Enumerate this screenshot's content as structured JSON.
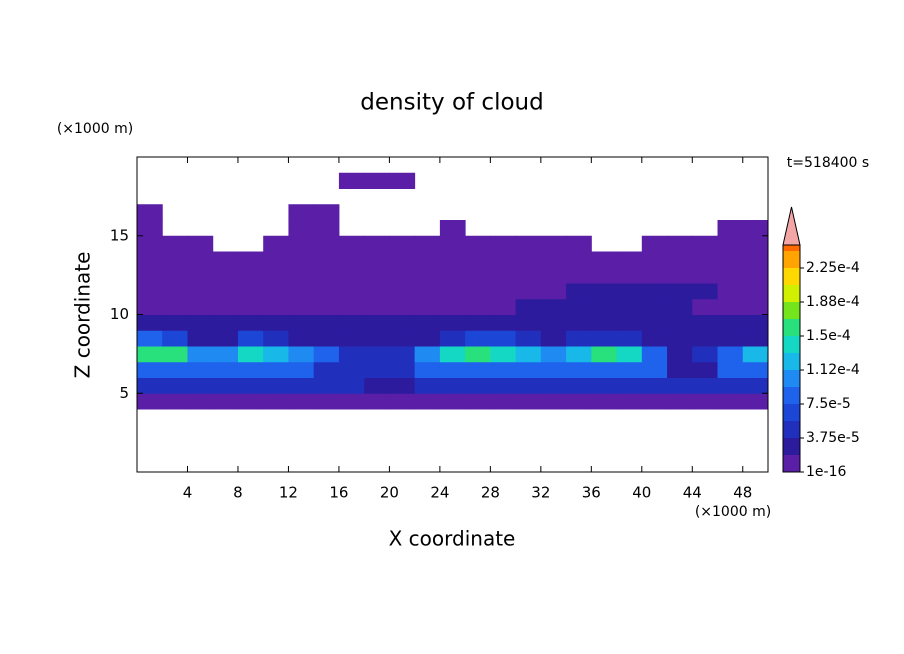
{
  "chart_data": {
    "type": "contour",
    "title": "density of cloud",
    "xlabel": "X coordinate",
    "ylabel": "Z coordinate",
    "x_unit": "(×1000 m)",
    "y_unit": "(×1000 m)",
    "time_label": "t=518400 s",
    "xlim": [
      0,
      50
    ],
    "ylim": [
      0,
      20
    ],
    "xticks": [
      4,
      8,
      12,
      16,
      20,
      24,
      28,
      32,
      36,
      40,
      44,
      48
    ],
    "yticks": [
      5,
      10,
      15
    ],
    "x": [
      1,
      3,
      5,
      7,
      9,
      11,
      13,
      15,
      17,
      19,
      21,
      23,
      25,
      27,
      29,
      31,
      33,
      35,
      37,
      39,
      41,
      43,
      45,
      47,
      49
    ],
    "y": [
      4.5,
      5.5,
      6.5,
      7.5,
      8.5,
      9.5,
      10.5,
      11.5,
      12.5,
      13.5,
      14.5,
      15.5,
      16.5,
      17.5,
      18.5
    ],
    "z": [
      [
        1e-06,
        1e-06,
        1e-06,
        1e-06,
        1e-06,
        1e-06,
        1e-06,
        1e-06,
        1e-06,
        1e-06,
        1e-06,
        1e-06,
        1e-06,
        1e-06,
        1e-06,
        1e-06,
        1e-06,
        1e-06,
        1e-06,
        1e-06,
        1e-06,
        1e-06,
        1e-06,
        1e-06,
        1e-06
      ],
      [
        4e-05,
        4e-05,
        4e-05,
        4e-05,
        4e-05,
        4e-05,
        4e-05,
        4e-05,
        4e-05,
        2e-05,
        2e-05,
        4e-05,
        4e-05,
        4e-05,
        4e-05,
        4e-05,
        4e-05,
        4e-05,
        4e-05,
        4e-05,
        4e-05,
        4e-05,
        4e-05,
        4e-05,
        4e-05
      ],
      [
        8e-05,
        8e-05,
        8e-05,
        8e-05,
        8e-05,
        8e-05,
        8e-05,
        4e-05,
        4e-05,
        4e-05,
        4e-05,
        8e-05,
        8e-05,
        8e-05,
        8e-05,
        8e-05,
        8e-05,
        8e-05,
        8e-05,
        8e-05,
        8e-05,
        3e-05,
        3e-05,
        8e-05,
        8e-05
      ],
      [
        0.00016,
        0.00015,
        0.00011,
        0.0001,
        0.00014,
        0.00013,
        0.0001,
        8e-05,
        5e-05,
        4e-05,
        5e-05,
        0.0001,
        0.00014,
        0.00015,
        0.00014,
        0.00012,
        0.00011,
        0.00013,
        0.00015,
        0.00014,
        8e-05,
        3e-05,
        4e-05,
        8e-05,
        0.00012
      ],
      [
        8e-05,
        6e-05,
        2e-05,
        3e-05,
        6e-05,
        5e-05,
        3e-05,
        2e-05,
        2e-05,
        2e-05,
        2e-05,
        2e-05,
        4e-05,
        6e-05,
        6e-05,
        5e-05,
        3e-05,
        4e-05,
        5e-05,
        4e-05,
        2e-05,
        2e-05,
        2e-05,
        2e-05,
        3e-05
      ],
      [
        2e-05,
        2e-05,
        2e-05,
        2e-05,
        2e-05,
        2e-05,
        2e-05,
        2e-05,
        2e-05,
        2e-05,
        2e-05,
        2e-05,
        2e-05,
        2e-05,
        2e-05,
        2e-05,
        3e-05,
        3e-05,
        3e-05,
        3e-05,
        3e-05,
        3e-05,
        2e-05,
        2e-05,
        2e-05
      ],
      [
        1.5e-05,
        1.5e-05,
        1.5e-05,
        1.5e-05,
        1.5e-05,
        1.5e-05,
        1.5e-05,
        1.5e-05,
        1.5e-05,
        1.5e-05,
        1.5e-05,
        1.5e-05,
        1.5e-05,
        1.5e-05,
        1.5e-05,
        2.5e-05,
        2.5e-05,
        2.5e-05,
        2.5e-05,
        2.5e-05,
        2.5e-05,
        2.5e-05,
        1.5e-05,
        1.5e-05,
        1.5e-05
      ],
      [
        1e-05,
        1e-05,
        1e-05,
        1e-05,
        1e-05,
        1e-05,
        1e-05,
        1e-05,
        1e-05,
        1e-05,
        1e-05,
        1e-05,
        1e-05,
        1e-05,
        1e-05,
        1e-05,
        1e-05,
        2e-05,
        2e-05,
        2e-05,
        2e-05,
        2e-05,
        2e-05,
        1e-05,
        1e-05
      ],
      [
        1e-05,
        1e-05,
        1e-05,
        1e-05,
        1e-05,
        1e-05,
        1e-05,
        1e-05,
        1e-05,
        1e-05,
        1e-05,
        1e-05,
        1e-05,
        1e-05,
        1e-05,
        1e-05,
        1e-05,
        1e-05,
        1e-05,
        1e-05,
        1e-05,
        1e-05,
        1e-05,
        1e-05,
        1e-05
      ],
      [
        5e-06,
        5e-06,
        5e-06,
        5e-06,
        5e-06,
        5e-06,
        5e-06,
        5e-06,
        5e-06,
        5e-06,
        5e-06,
        5e-06,
        5e-06,
        5e-06,
        5e-06,
        5e-06,
        5e-06,
        5e-06,
        5e-06,
        5e-06,
        5e-06,
        5e-06,
        5e-06,
        5e-06,
        5e-06
      ],
      [
        3e-06,
        3e-06,
        3e-06,
        null,
        null,
        3e-06,
        3e-06,
        3e-06,
        3e-06,
        3e-06,
        3e-06,
        3e-06,
        3e-06,
        3e-06,
        3e-06,
        3e-06,
        3e-06,
        3e-06,
        null,
        null,
        3e-06,
        3e-06,
        3e-06,
        3e-06,
        3e-06
      ],
      [
        3e-06,
        null,
        null,
        null,
        null,
        null,
        3e-06,
        3e-06,
        null,
        null,
        null,
        null,
        3e-06,
        null,
        null,
        null,
        null,
        null,
        null,
        null,
        null,
        null,
        null,
        3e-06,
        3e-06
      ],
      [
        3e-06,
        null,
        null,
        null,
        null,
        null,
        3e-06,
        3e-06,
        null,
        null,
        null,
        null,
        null,
        null,
        null,
        null,
        null,
        null,
        null,
        null,
        null,
        null,
        null,
        null,
        null
      ],
      [
        null,
        null,
        null,
        null,
        null,
        null,
        null,
        null,
        null,
        null,
        null,
        null,
        null,
        null,
        null,
        null,
        null,
        null,
        null,
        null,
        null,
        null,
        null,
        null,
        null
      ],
      [
        null,
        null,
        null,
        null,
        null,
        null,
        null,
        null,
        3e-06,
        3e-06,
        3e-06,
        null,
        null,
        null,
        null,
        null,
        null,
        null,
        null,
        null,
        null,
        null,
        null,
        null,
        null
      ]
    ],
    "levels": [
      1e-16,
      1.875e-05,
      3.75e-05,
      5.625e-05,
      7.5e-05,
      9.375e-05,
      0.000112,
      0.00013125,
      0.00015,
      0.00016875,
      0.000188,
      0.00020625,
      0.000225,
      0.00024375
    ],
    "colors": [
      "#5a1fa6",
      "#2d1b9e",
      "#2030bc",
      "#1c46d6",
      "#1f62ec",
      "#1e8af2",
      "#18b8e8",
      "#14d8c4",
      "#28e07c",
      "#74e41c",
      "#d0f000",
      "#ffd800",
      "#ffa400",
      "#ff6a00"
    ],
    "cticks": [
      {
        "value": 1e-16,
        "label": "1e-16"
      },
      {
        "value": 3.75e-05,
        "label": "3.75e-5"
      },
      {
        "value": 7.5e-05,
        "label": "7.5e-5"
      },
      {
        "value": 0.000112,
        "label": "1.12e-4"
      },
      {
        "value": 0.00015,
        "label": "1.5e-4"
      },
      {
        "value": 0.000188,
        "label": "1.88e-4"
      },
      {
        "value": 0.000225,
        "label": "2.25e-4"
      }
    ],
    "extend_color": "#f4a6a6"
  }
}
